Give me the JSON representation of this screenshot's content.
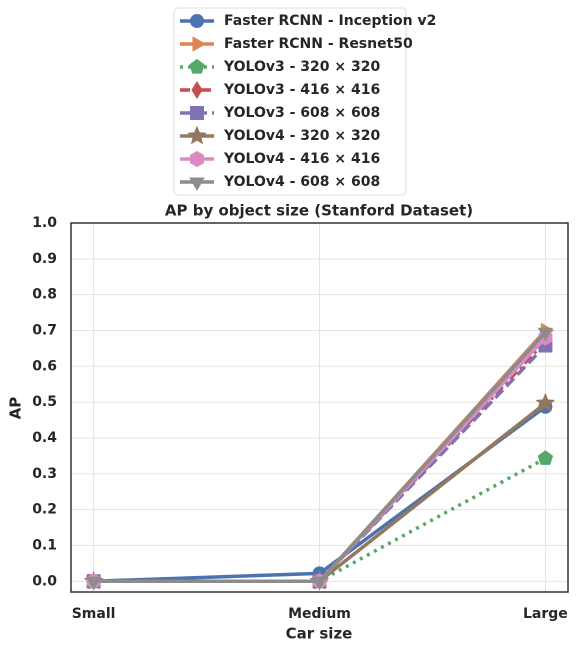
{
  "chart_data": {
    "type": "line",
    "title": "AP by object size (Stanford Dataset)",
    "xlabel": "Car size",
    "ylabel": "AP",
    "categories": [
      "Small",
      "Medium",
      "Large"
    ],
    "ylim": [
      -0.03,
      1.0
    ],
    "yticks": [
      {
        "value": 0,
        "label": "0.0"
      },
      0.1,
      0.2,
      0.3,
      0.4,
      0.5,
      0.6,
      0.7,
      0.8,
      0.9,
      {
        "value": 1,
        "label": "1.0"
      }
    ],
    "grid": true,
    "legend": "top",
    "series": [
      {
        "name": "Faster RCNN - Inception v2",
        "color": "#4c72b0",
        "marker": "o",
        "linestyle": "solid",
        "values": [
          0,
          0.022,
          0.487
        ]
      },
      {
        "name": "Faster RCNN - Resnet50",
        "color": "#dd8452",
        "marker": ">",
        "linestyle": "solid",
        "values": [
          0,
          0,
          0.7
        ]
      },
      {
        "name": "YOLOv3 - 320 × 320",
        "color": "#55a868",
        "marker": "p",
        "linestyle": "dotted",
        "values": [
          0,
          0,
          0.343
        ]
      },
      {
        "name": "YOLOv3 - 416 × 416",
        "color": "#c44e52",
        "marker": "d",
        "linestyle": "dashdot",
        "values": [
          0,
          0,
          0.67
        ]
      },
      {
        "name": "YOLOv3 - 608 × 608",
        "color": "#8172b3",
        "marker": "s",
        "linestyle": "dashed",
        "values": [
          0,
          0,
          0.658
        ]
      },
      {
        "name": "YOLOv4 - 320 × 320",
        "color": "#937860",
        "marker": "*",
        "linestyle": "solid",
        "values": [
          0,
          0,
          0.497
        ]
      },
      {
        "name": "YOLOv4 - 416 × 416",
        "color": "#da8bc3",
        "marker": "h",
        "linestyle": "solid",
        "values": [
          0,
          0,
          0.68
        ]
      },
      {
        "name": "YOLOv4 - 608 × 608",
        "color": "#8c8c8c",
        "marker": "v",
        "linestyle": "solid",
        "values": [
          0,
          0,
          0.695
        ]
      }
    ]
  }
}
